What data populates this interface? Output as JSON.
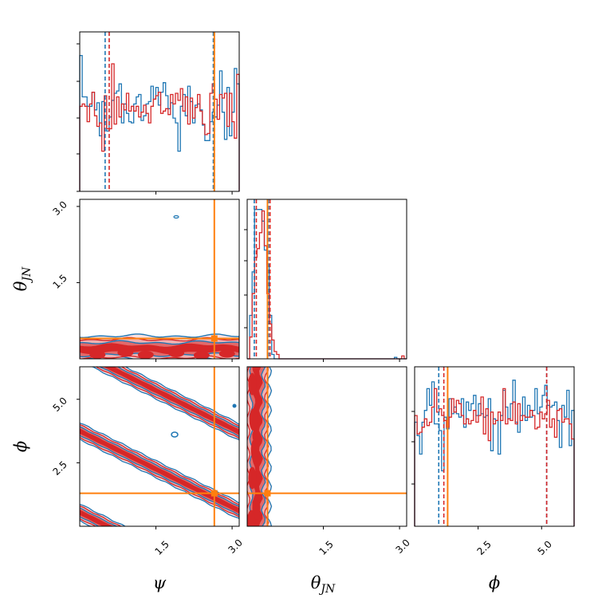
{
  "chart_data": {
    "type": "corner",
    "parameters": [
      {
        "key": "psi",
        "symbol": "ψ",
        "symbol_sub": "",
        "range": [
          0,
          3.14
        ],
        "ticks": [
          {
            "value": 1.5,
            "label": "1.5"
          },
          {
            "value": 3.0,
            "label": "3.0"
          }
        ]
      },
      {
        "key": "theta_jn",
        "symbol": "θ",
        "symbol_sub": "JN",
        "range": [
          0,
          3.14
        ],
        "ticks": [
          {
            "value": 1.5,
            "label": "1.5"
          },
          {
            "value": 3.0,
            "label": "3.0"
          }
        ]
      },
      {
        "key": "phi",
        "symbol": "ϕ",
        "symbol_sub": "",
        "range": [
          0,
          6.28
        ],
        "ticks": [
          {
            "value": 2.5,
            "label": "2.5"
          },
          {
            "value": 5.0,
            "label": "5.0"
          }
        ]
      }
    ],
    "colors": {
      "series_a": "#1f77b4",
      "series_b": "#d62728",
      "truth": "#ff7f0e",
      "fill_b": "#e8a0a0"
    },
    "truth_values": {
      "psi": 2.65,
      "theta_jn": 0.4,
      "phi": 1.3
    },
    "credible_intervals": {
      "series_a": {
        "psi": [
          0.5,
          2.63
        ],
        "theta_jn": [
          0.14,
          0.42
        ],
        "phi": [
          0.95,
          5.2
        ]
      },
      "series_b": {
        "psi": [
          0.58,
          2.65
        ],
        "theta_jn": [
          0.18,
          0.45
        ],
        "phi": [
          1.15,
          5.2
        ]
      }
    },
    "histograms": {
      "psi": {
        "series_a": [
          11.5,
          8,
          8,
          7.2,
          7.2,
          8.4,
          6.9,
          7.5,
          4.7,
          7.6,
          5.9,
          5.1,
          6.3,
          7.7,
          8.3,
          8.5,
          9.1,
          5.8,
          7.4,
          6.6,
          5.9,
          5.8,
          7.4,
          8,
          8.2,
          6,
          6.4,
          7.4,
          7.6,
          8.9,
          7.8,
          8.8,
          7.3,
          8.4,
          9.2,
          8.1,
          7,
          7.5,
          6.2,
          5.8,
          3.4,
          7.2,
          8.2,
          6.4,
          8.9,
          7.6,
          5.8,
          7.3,
          7.4,
          6.9,
          5.6,
          4.3,
          4.3,
          5.9,
          6.7,
          6.3,
          7.3,
          10.2,
          6.7,
          4.4,
          8.8,
          4.7,
          6.7,
          10.4,
          9.1
        ],
        "series_b": [
          7.2,
          7.4,
          7.2,
          5.9,
          7.4,
          8.4,
          6.4,
          5.5,
          5.8,
          3.4,
          8.1,
          5.3,
          5.3,
          10.8,
          5.7,
          8,
          6.3,
          7.4,
          6.9,
          8.3,
          6.8,
          7.2,
          6.8,
          7.2,
          6.3,
          6.7,
          7.3,
          6.6,
          5.8,
          7.2,
          7.8,
          8.1,
          8.4,
          6.6,
          6.8,
          7,
          6.5,
          8.2,
          7.4,
          8.3,
          7.7,
          8.7,
          6.8,
          8,
          5.7,
          7.9,
          6.2,
          7.1,
          8.2,
          6.8,
          5.7,
          4.8,
          4.9,
          8.3,
          9.1,
          7.8,
          6.1,
          8.2,
          7.9,
          8.3,
          5.5,
          8.3,
          5.9,
          4.5,
          9.9
        ]
      },
      "theta_jn": {
        "series_a": [
          0,
          3,
          6,
          10.3,
          10.3,
          10.3,
          9.5,
          7.5,
          6.5,
          3,
          0.3,
          0,
          0,
          0,
          0,
          0,
          0,
          0,
          0,
          0,
          0,
          0,
          0,
          0,
          0,
          0,
          0,
          0,
          0,
          0,
          0,
          0,
          0,
          0,
          0,
          0,
          0,
          0,
          0,
          0,
          0,
          0,
          0,
          0,
          0,
          0,
          0,
          0,
          0,
          0,
          0,
          0,
          0,
          0,
          0,
          0,
          0,
          0,
          0,
          0,
          0.1,
          0,
          0,
          0,
          0
        ],
        "series_b": [
          0,
          1.5,
          4.5,
          7,
          7.6,
          8.7,
          10.2,
          7.8,
          4.5,
          2.4,
          1.3,
          0.5,
          0.3,
          0,
          0,
          0,
          0,
          0,
          0,
          0,
          0,
          0,
          0,
          0,
          0,
          0,
          0,
          0,
          0,
          0,
          0,
          0,
          0,
          0,
          0,
          0,
          0,
          0,
          0,
          0,
          0,
          0,
          0,
          0,
          0,
          0,
          0,
          0,
          0,
          0,
          0,
          0,
          0,
          0,
          0,
          0,
          0,
          0,
          0,
          0,
          0,
          0,
          0,
          0.2,
          0
        ]
      },
      "phi": {
        "series_a": [
          6.2,
          5.4,
          4.3,
          6.2,
          6.9,
          8.2,
          7.2,
          8.6,
          6.1,
          6.1,
          5.7,
          3.3,
          6.5,
          5.8,
          7.6,
          6.7,
          7.1,
          6.7,
          6.5,
          7.6,
          5.9,
          7.4,
          6.9,
          7.3,
          7.8,
          6.6,
          7.3,
          6.7,
          6.5,
          6.6,
          7.6,
          4.5,
          6.4,
          6.3,
          4.3,
          6.6,
          8.1,
          7.1,
          6.4,
          7.3,
          8.7,
          6.2,
          5.6,
          6.6,
          7.7,
          6.3,
          7.2,
          6.5,
          6.9,
          8.2,
          6.7,
          7.1,
          7.8,
          8.4,
          7.2,
          7.1,
          7.2,
          7.4,
          6.3,
          4.7,
          7.2,
          6.5,
          8.1,
          4.8,
          6.9
        ],
        "series_b": [
          6.6,
          5.5,
          5.6,
          5.9,
          6.4,
          6,
          6.2,
          7.1,
          8.2,
          6.8,
          7,
          6.6,
          6.3,
          5.9,
          6.5,
          7.6,
          6.8,
          7.5,
          7.3,
          6.6,
          6.1,
          6.4,
          6.1,
          6.3,
          6.9,
          6.2,
          6.6,
          7.7,
          5.5,
          7,
          5.1,
          6.8,
          6.1,
          6.3,
          6.8,
          6.3,
          8.2,
          6.1,
          6.4,
          6.3,
          7.4,
          6.1,
          7.3,
          6.3,
          6.6,
          6.5,
          6.5,
          6.9,
          6.6,
          5.8,
          5.9,
          6.8,
          6.4,
          6.7,
          7.5,
          5.9,
          6.4,
          5.3,
          6.9,
          7,
          6.2,
          6.4,
          6.4,
          6.1,
          5.2
        ]
      }
    },
    "histogram_ylim": {
      "psi": [
        0,
        13.5
      ],
      "theta_jn": [
        0,
        11
      ],
      "phi": [
        0,
        9.5
      ]
    },
    "joint": {
      "theta_jn_vs_psi": {
        "theta_band_center": 0.2,
        "theta_band_half_widths": [
          0.25,
          0.18,
          0.12,
          0.06
        ]
      },
      "phi_vs_psi": {
        "ridges": [
          {
            "phi_at_psi0": 0.55
          },
          {
            "phi_at_psi0": 3.75
          },
          {
            "phi_at_psi0": 6.85
          }
        ],
        "slope": -1.0,
        "half_widths": [
          0.33,
          0.25,
          0.17,
          0.08
        ]
      },
      "phi_vs_theta_jn": {
        "theta_center": 0.2,
        "half_widths": [
          0.24,
          0.18,
          0.12,
          0.06
        ]
      }
    }
  }
}
